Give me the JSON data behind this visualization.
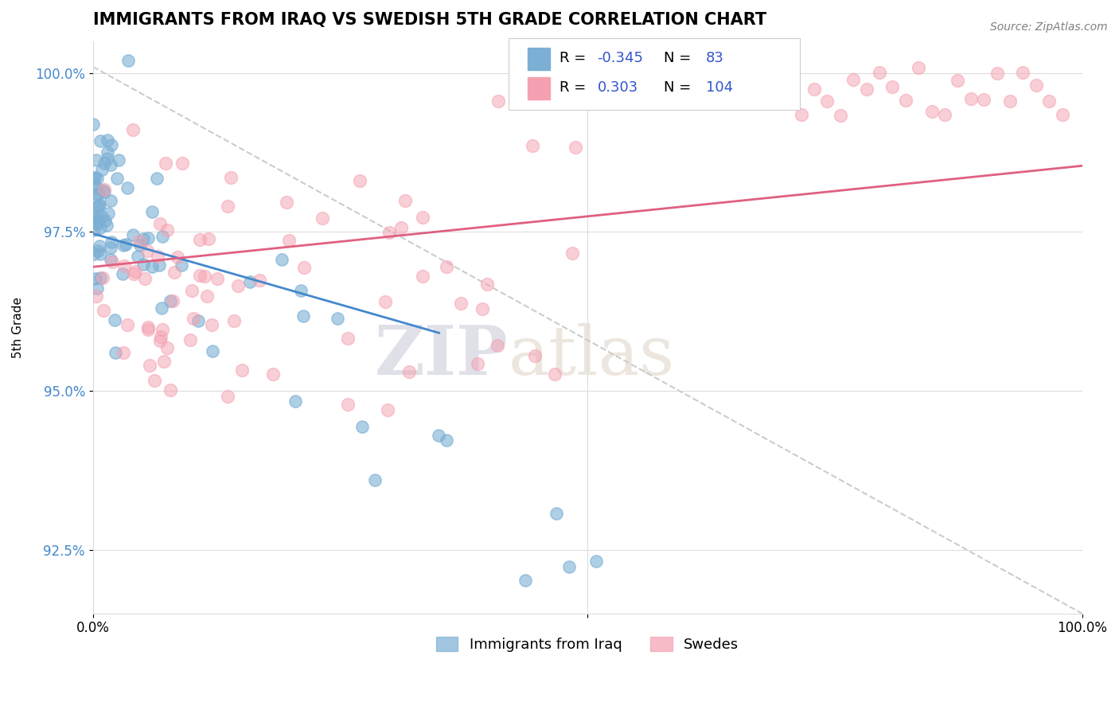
{
  "title": "IMMIGRANTS FROM IRAQ VS SWEDISH 5TH GRADE CORRELATION CHART",
  "source": "Source: ZipAtlas.com",
  "ylabel": "5th Grade",
  "xlim": [
    0.0,
    1.0
  ],
  "ylim": [
    0.915,
    1.005
  ],
  "yticks": [
    0.925,
    0.95,
    0.975,
    1.0
  ],
  "ytick_labels": [
    "92.5%",
    "95.0%",
    "97.5%",
    "100.0%"
  ],
  "legend_labels": [
    "Immigrants from Iraq",
    "Swedes"
  ],
  "blue_color": "#7bafd4",
  "pink_color": "#f4a0b0",
  "blue_R": -0.345,
  "blue_N": 83,
  "pink_R": 0.303,
  "pink_N": 104,
  "blue_seed": 42,
  "pink_seed": 7,
  "background_color": "#ffffff",
  "watermark_zip": "ZIP",
  "watermark_atlas": "atlas",
  "title_fontsize": 15,
  "axis_label_fontsize": 11
}
